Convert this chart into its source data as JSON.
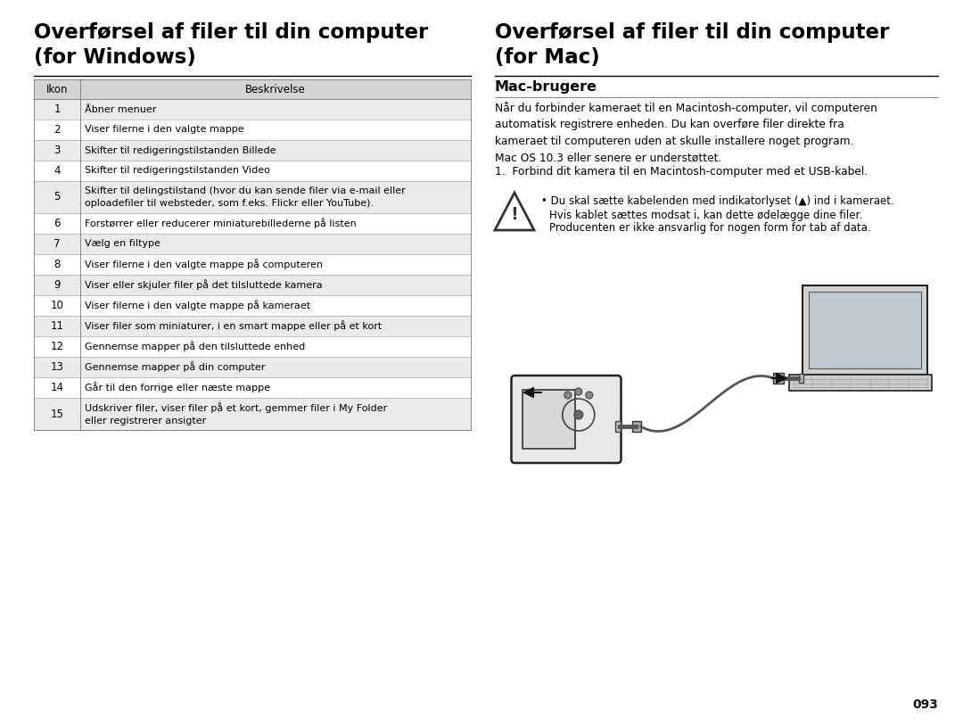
{
  "bg_color": "#ffffff",
  "page_number": "093",
  "left_title_line1": "Overførsel af filer til din computer",
  "left_title_line2": "(for Windows)",
  "right_title_line1": "Overførsel af filer til din computer",
  "right_title_line2": "(for Mac)",
  "table_header": [
    "Ikon",
    "Beskrivelse"
  ],
  "table_rows": [
    [
      "1",
      "Åbner menuer"
    ],
    [
      "2",
      "Viser filerne i den valgte mappe"
    ],
    [
      "3",
      "Skifter til redigeringstilstanden Billede"
    ],
    [
      "4",
      "Skifter til redigeringstilstanden Video"
    ],
    [
      "5",
      "Skifter til delingstilstand (hvor du kan sende filer via e-mail eller\noploadefiler til websteder, som f.eks. Flickr eller YouTube)."
    ],
    [
      "6",
      "Forstørrer eller reducerer miniaturebillederne på listen"
    ],
    [
      "7",
      "Vælg en filtype"
    ],
    [
      "8",
      "Viser filerne i den valgte mappe på computeren"
    ],
    [
      "9",
      "Viser eller skjuler filer på det tilsluttede kamera"
    ],
    [
      "10",
      "Viser filerne i den valgte mappe på kameraet"
    ],
    [
      "11",
      "Viser filer som miniaturer, i en smart mappe eller på et kort"
    ],
    [
      "12",
      "Gennemse mapper på den tilsluttede enhed"
    ],
    [
      "13",
      "Gennemse mapper på din computer"
    ],
    [
      "14",
      "Går til den forrige eller næste mappe"
    ],
    [
      "15",
      "Udskriver filer, viser filer på et kort, gemmer filer i My Folder\neller registrerer ansigter"
    ]
  ],
  "table_header_bg": "#d4d4d4",
  "table_alt_bg": "#ebebeb",
  "table_white_bg": "#ffffff",
  "mac_subtitle": "Mac-brugere",
  "mac_para1": "Når du forbinder kameraet til en Macintosh-computer, vil computeren\nautomatisk registrere enheden. Du kan overføre filer direkte fra\nkameraet til computeren uden at skulle installere noget program.\nMac OS 10.3 eller senere er understøttet.",
  "mac_step1": "1.  Forbind dit kamera til en Macintosh-computer med et USB-kabel.",
  "warning_bullet": "•",
  "warning_line1": "Du skal sætte kabelenden med indikatorlyset (▲) ind i kameraet.",
  "warning_line2": "Hvis kablet sættes modsat i, kan dette ødelægge dine filer.",
  "warning_line3": "Producenten er ikke ansvarlig for nogen form for tab af data."
}
